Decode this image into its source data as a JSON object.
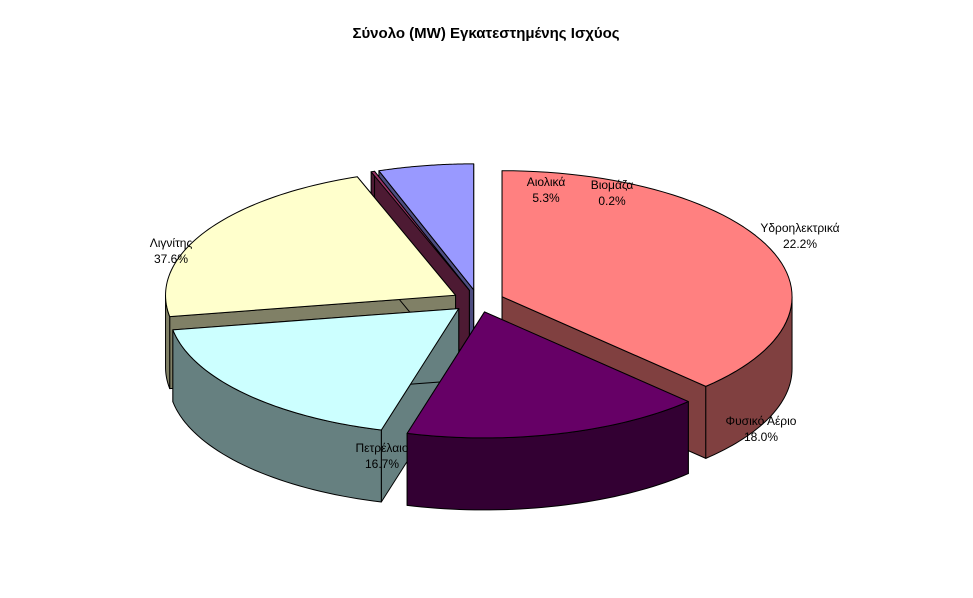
{
  "chart_data": {
    "type": "pie",
    "title": "Σύνολο (MW) Εγκατεστημένης Ισχύος",
    "three_d": true,
    "exploded": true,
    "legend": "none",
    "slices": [
      {
        "label": "Λιγνίτης",
        "value": 37.6,
        "value_label": "37.6%",
        "color": "#ff8080"
      },
      {
        "label": "Πετρέλαιο",
        "value": 16.7,
        "value_label": "16.7%",
        "color": "#660066"
      },
      {
        "label": "Φυσικό Αέριο",
        "value": 18.0,
        "value_label": "18.0%",
        "color": "#ccffff"
      },
      {
        "label": "Υδροηλεκτρικά",
        "value": 22.2,
        "value_label": "22.2%",
        "color": "#ffffcc"
      },
      {
        "label": "Βιομάζα",
        "value": 0.2,
        "value_label": "0.2%",
        "color": "#993366"
      },
      {
        "label": "Αιολικά",
        "value": 5.3,
        "value_label": "5.3%",
        "color": "#9999ff"
      }
    ]
  }
}
